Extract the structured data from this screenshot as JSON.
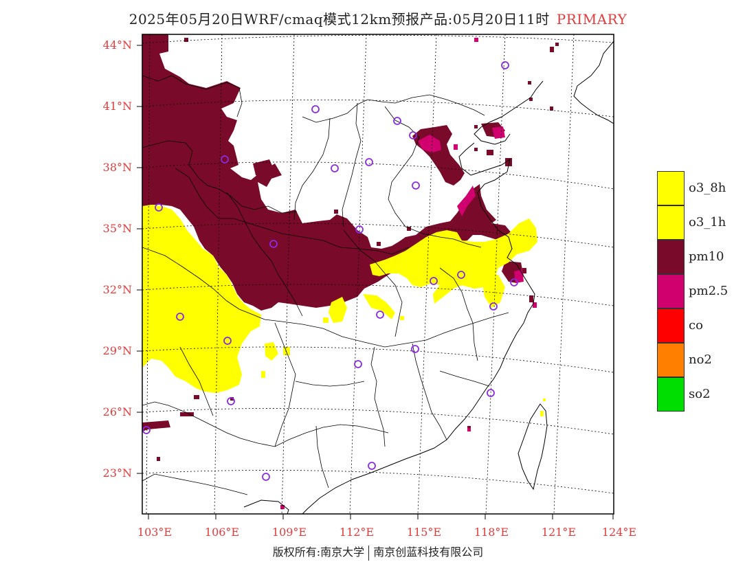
{
  "title": {
    "main": "2025年05月20日WRF/cmaq模式12km预报产品:05月20日11时",
    "mode": "PRIMARY"
  },
  "axes": {
    "lat_labels": [
      "44°N",
      "41°N",
      "38°N",
      "35°N",
      "32°N",
      "29°N",
      "26°N",
      "23°N"
    ],
    "lon_labels": [
      "103°E",
      "106°E",
      "109°E",
      "112°E",
      "115°E",
      "118°E",
      "121°E",
      "124°E"
    ]
  },
  "legend": {
    "items": [
      {
        "label": "o3_8h",
        "color": "#ffff00"
      },
      {
        "label": "o3_1h",
        "color": "#ffff00"
      },
      {
        "label": "pm10",
        "color": "#7a0a2a"
      },
      {
        "label": "pm2.5",
        "color": "#d0006f"
      },
      {
        "label": "co",
        "color": "#ff0000"
      },
      {
        "label": "no2",
        "color": "#ff7f00"
      },
      {
        "label": "so2",
        "color": "#00dd00"
      }
    ]
  },
  "colors": {
    "pm10": "#7a0a2a",
    "pm25": "#d0006f",
    "o3": "#ffff00",
    "label_red": "#e23b3b",
    "station": "#8a2be2"
  },
  "footer": {
    "left": "版权所有:南京大学",
    "right": "南京创蓝科技有限公司"
  }
}
